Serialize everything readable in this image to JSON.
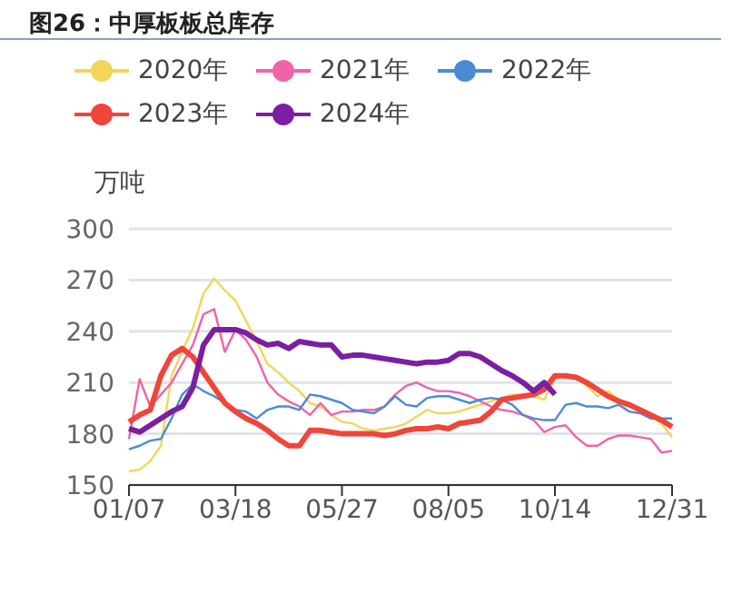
{
  "chart_data": {
    "type": "line",
    "title": "图26：中厚板板总库存",
    "ylabel": "万吨",
    "categories": [
      "01/07",
      null,
      null,
      null,
      null,
      null,
      null,
      null,
      null,
      null,
      "03/18",
      null,
      null,
      null,
      null,
      null,
      null,
      null,
      null,
      null,
      "05/27",
      null,
      null,
      null,
      null,
      null,
      null,
      null,
      null,
      null,
      "08/05",
      null,
      null,
      null,
      null,
      null,
      null,
      null,
      null,
      null,
      "10/14",
      null,
      null,
      null,
      null,
      null,
      null,
      null,
      null,
      null,
      null,
      "12/31"
    ],
    "series": [
      {
        "name": "2020年",
        "color": "#f2d55a",
        "values": [
          158,
          159,
          164,
          173,
          214,
          228,
          242,
          262,
          271,
          264,
          258,
          246,
          234,
          221,
          216,
          210,
          205,
          198,
          196,
          191,
          187,
          186,
          183,
          182,
          183,
          184,
          186,
          190,
          194,
          192,
          192,
          193,
          195,
          197,
          199,
          201,
          203,
          203,
          202,
          200,
          212,
          214,
          213,
          208,
          202,
          205,
          200,
          196,
          194,
          190,
          186,
          178
        ]
      },
      {
        "name": "2021年",
        "color": "#f063a8",
        "values": [
          177,
          212,
          196,
          203,
          210,
          221,
          232,
          250,
          253,
          228,
          241,
          235,
          225,
          210,
          203,
          199,
          196,
          191,
          198,
          191,
          193,
          193,
          194,
          194,
          196,
          203,
          208,
          210,
          207,
          205,
          205,
          204,
          202,
          199,
          196,
          194,
          193,
          191,
          188,
          181,
          184,
          185,
          178,
          173,
          173,
          177,
          179,
          179,
          178,
          177,
          169,
          170
        ]
      },
      {
        "name": "2022年",
        "color": "#4a8bd6",
        "values": [
          171,
          173,
          176,
          177,
          189,
          203,
          209,
          205,
          202,
          198,
          194,
          193,
          189,
          194,
          196,
          196,
          194,
          203,
          202,
          200,
          198,
          194,
          193,
          192,
          196,
          202,
          197,
          196,
          201,
          202,
          202,
          200,
          198,
          200,
          201,
          200,
          197,
          191,
          189,
          188,
          188,
          197,
          198,
          196,
          196,
          195,
          197,
          193,
          192,
          189,
          189,
          189
        ]
      },
      {
        "name": "2023年",
        "color": "#f0453a",
        "values": [
          187,
          191,
          194,
          214,
          226,
          230,
          225,
          216,
          207,
          198,
          193,
          189,
          186,
          182,
          177,
          173,
          173,
          182,
          182,
          181,
          180,
          180,
          180,
          180,
          179,
          180,
          182,
          183,
          183,
          184,
          183,
          186,
          187,
          188,
          193,
          200,
          201,
          202,
          203,
          206,
          214,
          214,
          213,
          210,
          206,
          202,
          199,
          197,
          194,
          191,
          188,
          184
        ]
      },
      {
        "name": "2024年",
        "color": "#7b1fa2",
        "values": [
          183,
          181,
          185,
          189,
          193,
          196,
          207,
          232,
          241,
          241,
          241,
          239,
          235,
          232,
          233,
          230,
          234,
          233,
          232,
          232,
          225,
          226,
          226,
          225,
          224,
          223,
          222,
          221,
          222,
          222,
          223,
          227,
          227,
          225,
          221,
          217,
          214,
          210,
          205,
          210,
          203,
          null,
          null,
          null,
          null,
          null,
          null,
          null,
          null,
          null,
          null,
          null
        ]
      }
    ],
    "ylim": [
      150,
      300
    ],
    "yticks": [
      150,
      180,
      210,
      240,
      270,
      300
    ],
    "grid": "y",
    "legend": "top",
    "marker": "none",
    "line_style": "solid"
  }
}
